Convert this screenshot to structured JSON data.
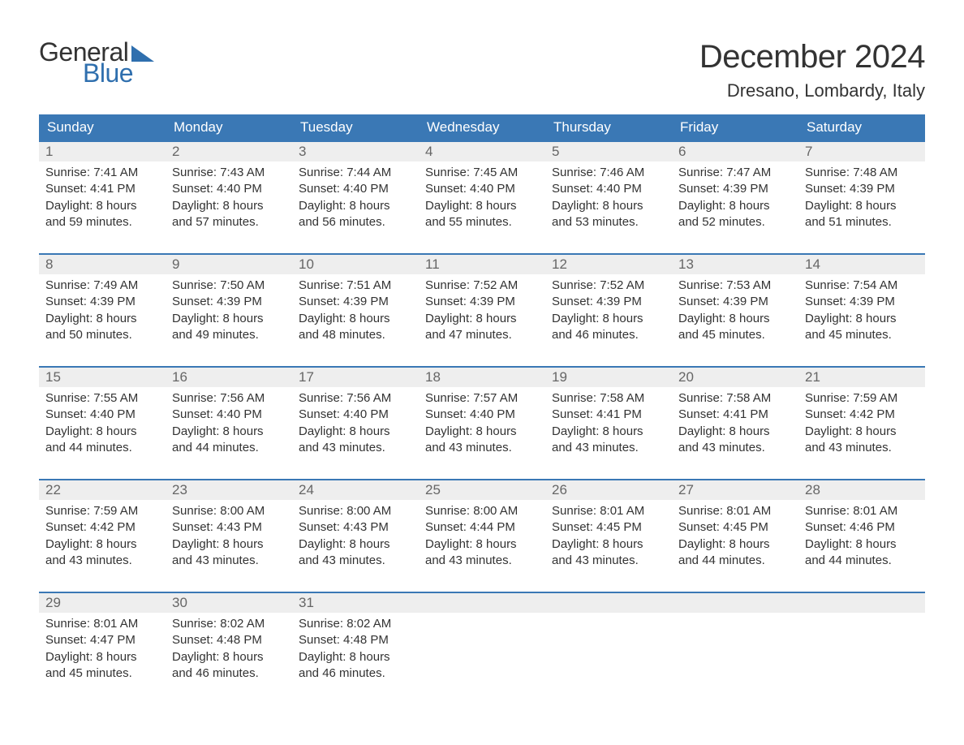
{
  "logo": {
    "word1": "General",
    "word2": "Blue"
  },
  "title": "December 2024",
  "location": "Dresano, Lombardy, Italy",
  "colors": {
    "header_bg": "#3a78b5",
    "header_text": "#ffffff",
    "accent": "#2f6fae",
    "daynum_bg": "#eeeeee",
    "daynum_text": "#666666",
    "body_text": "#333333",
    "page_bg": "#ffffff"
  },
  "day_names": [
    "Sunday",
    "Monday",
    "Tuesday",
    "Wednesday",
    "Thursday",
    "Friday",
    "Saturday"
  ],
  "labels": {
    "sunrise": "Sunrise:",
    "sunset": "Sunset:",
    "daylight": "Daylight:"
  },
  "weeks": [
    [
      {
        "n": "1",
        "sunrise": "7:41 AM",
        "sunset": "4:41 PM",
        "dl1": "8 hours",
        "dl2": "and 59 minutes."
      },
      {
        "n": "2",
        "sunrise": "7:43 AM",
        "sunset": "4:40 PM",
        "dl1": "8 hours",
        "dl2": "and 57 minutes."
      },
      {
        "n": "3",
        "sunrise": "7:44 AM",
        "sunset": "4:40 PM",
        "dl1": "8 hours",
        "dl2": "and 56 minutes."
      },
      {
        "n": "4",
        "sunrise": "7:45 AM",
        "sunset": "4:40 PM",
        "dl1": "8 hours",
        "dl2": "and 55 minutes."
      },
      {
        "n": "5",
        "sunrise": "7:46 AM",
        "sunset": "4:40 PM",
        "dl1": "8 hours",
        "dl2": "and 53 minutes."
      },
      {
        "n": "6",
        "sunrise": "7:47 AM",
        "sunset": "4:39 PM",
        "dl1": "8 hours",
        "dl2": "and 52 minutes."
      },
      {
        "n": "7",
        "sunrise": "7:48 AM",
        "sunset": "4:39 PM",
        "dl1": "8 hours",
        "dl2": "and 51 minutes."
      }
    ],
    [
      {
        "n": "8",
        "sunrise": "7:49 AM",
        "sunset": "4:39 PM",
        "dl1": "8 hours",
        "dl2": "and 50 minutes."
      },
      {
        "n": "9",
        "sunrise": "7:50 AM",
        "sunset": "4:39 PM",
        "dl1": "8 hours",
        "dl2": "and 49 minutes."
      },
      {
        "n": "10",
        "sunrise": "7:51 AM",
        "sunset": "4:39 PM",
        "dl1": "8 hours",
        "dl2": "and 48 minutes."
      },
      {
        "n": "11",
        "sunrise": "7:52 AM",
        "sunset": "4:39 PM",
        "dl1": "8 hours",
        "dl2": "and 47 minutes."
      },
      {
        "n": "12",
        "sunrise": "7:52 AM",
        "sunset": "4:39 PM",
        "dl1": "8 hours",
        "dl2": "and 46 minutes."
      },
      {
        "n": "13",
        "sunrise": "7:53 AM",
        "sunset": "4:39 PM",
        "dl1": "8 hours",
        "dl2": "and 45 minutes."
      },
      {
        "n": "14",
        "sunrise": "7:54 AM",
        "sunset": "4:39 PM",
        "dl1": "8 hours",
        "dl2": "and 45 minutes."
      }
    ],
    [
      {
        "n": "15",
        "sunrise": "7:55 AM",
        "sunset": "4:40 PM",
        "dl1": "8 hours",
        "dl2": "and 44 minutes."
      },
      {
        "n": "16",
        "sunrise": "7:56 AM",
        "sunset": "4:40 PM",
        "dl1": "8 hours",
        "dl2": "and 44 minutes."
      },
      {
        "n": "17",
        "sunrise": "7:56 AM",
        "sunset": "4:40 PM",
        "dl1": "8 hours",
        "dl2": "and 43 minutes."
      },
      {
        "n": "18",
        "sunrise": "7:57 AM",
        "sunset": "4:40 PM",
        "dl1": "8 hours",
        "dl2": "and 43 minutes."
      },
      {
        "n": "19",
        "sunrise": "7:58 AM",
        "sunset": "4:41 PM",
        "dl1": "8 hours",
        "dl2": "and 43 minutes."
      },
      {
        "n": "20",
        "sunrise": "7:58 AM",
        "sunset": "4:41 PM",
        "dl1": "8 hours",
        "dl2": "and 43 minutes."
      },
      {
        "n": "21",
        "sunrise": "7:59 AM",
        "sunset": "4:42 PM",
        "dl1": "8 hours",
        "dl2": "and 43 minutes."
      }
    ],
    [
      {
        "n": "22",
        "sunrise": "7:59 AM",
        "sunset": "4:42 PM",
        "dl1": "8 hours",
        "dl2": "and 43 minutes."
      },
      {
        "n": "23",
        "sunrise": "8:00 AM",
        "sunset": "4:43 PM",
        "dl1": "8 hours",
        "dl2": "and 43 minutes."
      },
      {
        "n": "24",
        "sunrise": "8:00 AM",
        "sunset": "4:43 PM",
        "dl1": "8 hours",
        "dl2": "and 43 minutes."
      },
      {
        "n": "25",
        "sunrise": "8:00 AM",
        "sunset": "4:44 PM",
        "dl1": "8 hours",
        "dl2": "and 43 minutes."
      },
      {
        "n": "26",
        "sunrise": "8:01 AM",
        "sunset": "4:45 PM",
        "dl1": "8 hours",
        "dl2": "and 43 minutes."
      },
      {
        "n": "27",
        "sunrise": "8:01 AM",
        "sunset": "4:45 PM",
        "dl1": "8 hours",
        "dl2": "and 44 minutes."
      },
      {
        "n": "28",
        "sunrise": "8:01 AM",
        "sunset": "4:46 PM",
        "dl1": "8 hours",
        "dl2": "and 44 minutes."
      }
    ],
    [
      {
        "n": "29",
        "sunrise": "8:01 AM",
        "sunset": "4:47 PM",
        "dl1": "8 hours",
        "dl2": "and 45 minutes."
      },
      {
        "n": "30",
        "sunrise": "8:02 AM",
        "sunset": "4:48 PM",
        "dl1": "8 hours",
        "dl2": "and 46 minutes."
      },
      {
        "n": "31",
        "sunrise": "8:02 AM",
        "sunset": "4:48 PM",
        "dl1": "8 hours",
        "dl2": "and 46 minutes."
      },
      {
        "empty": true
      },
      {
        "empty": true
      },
      {
        "empty": true
      },
      {
        "empty": true
      }
    ]
  ]
}
